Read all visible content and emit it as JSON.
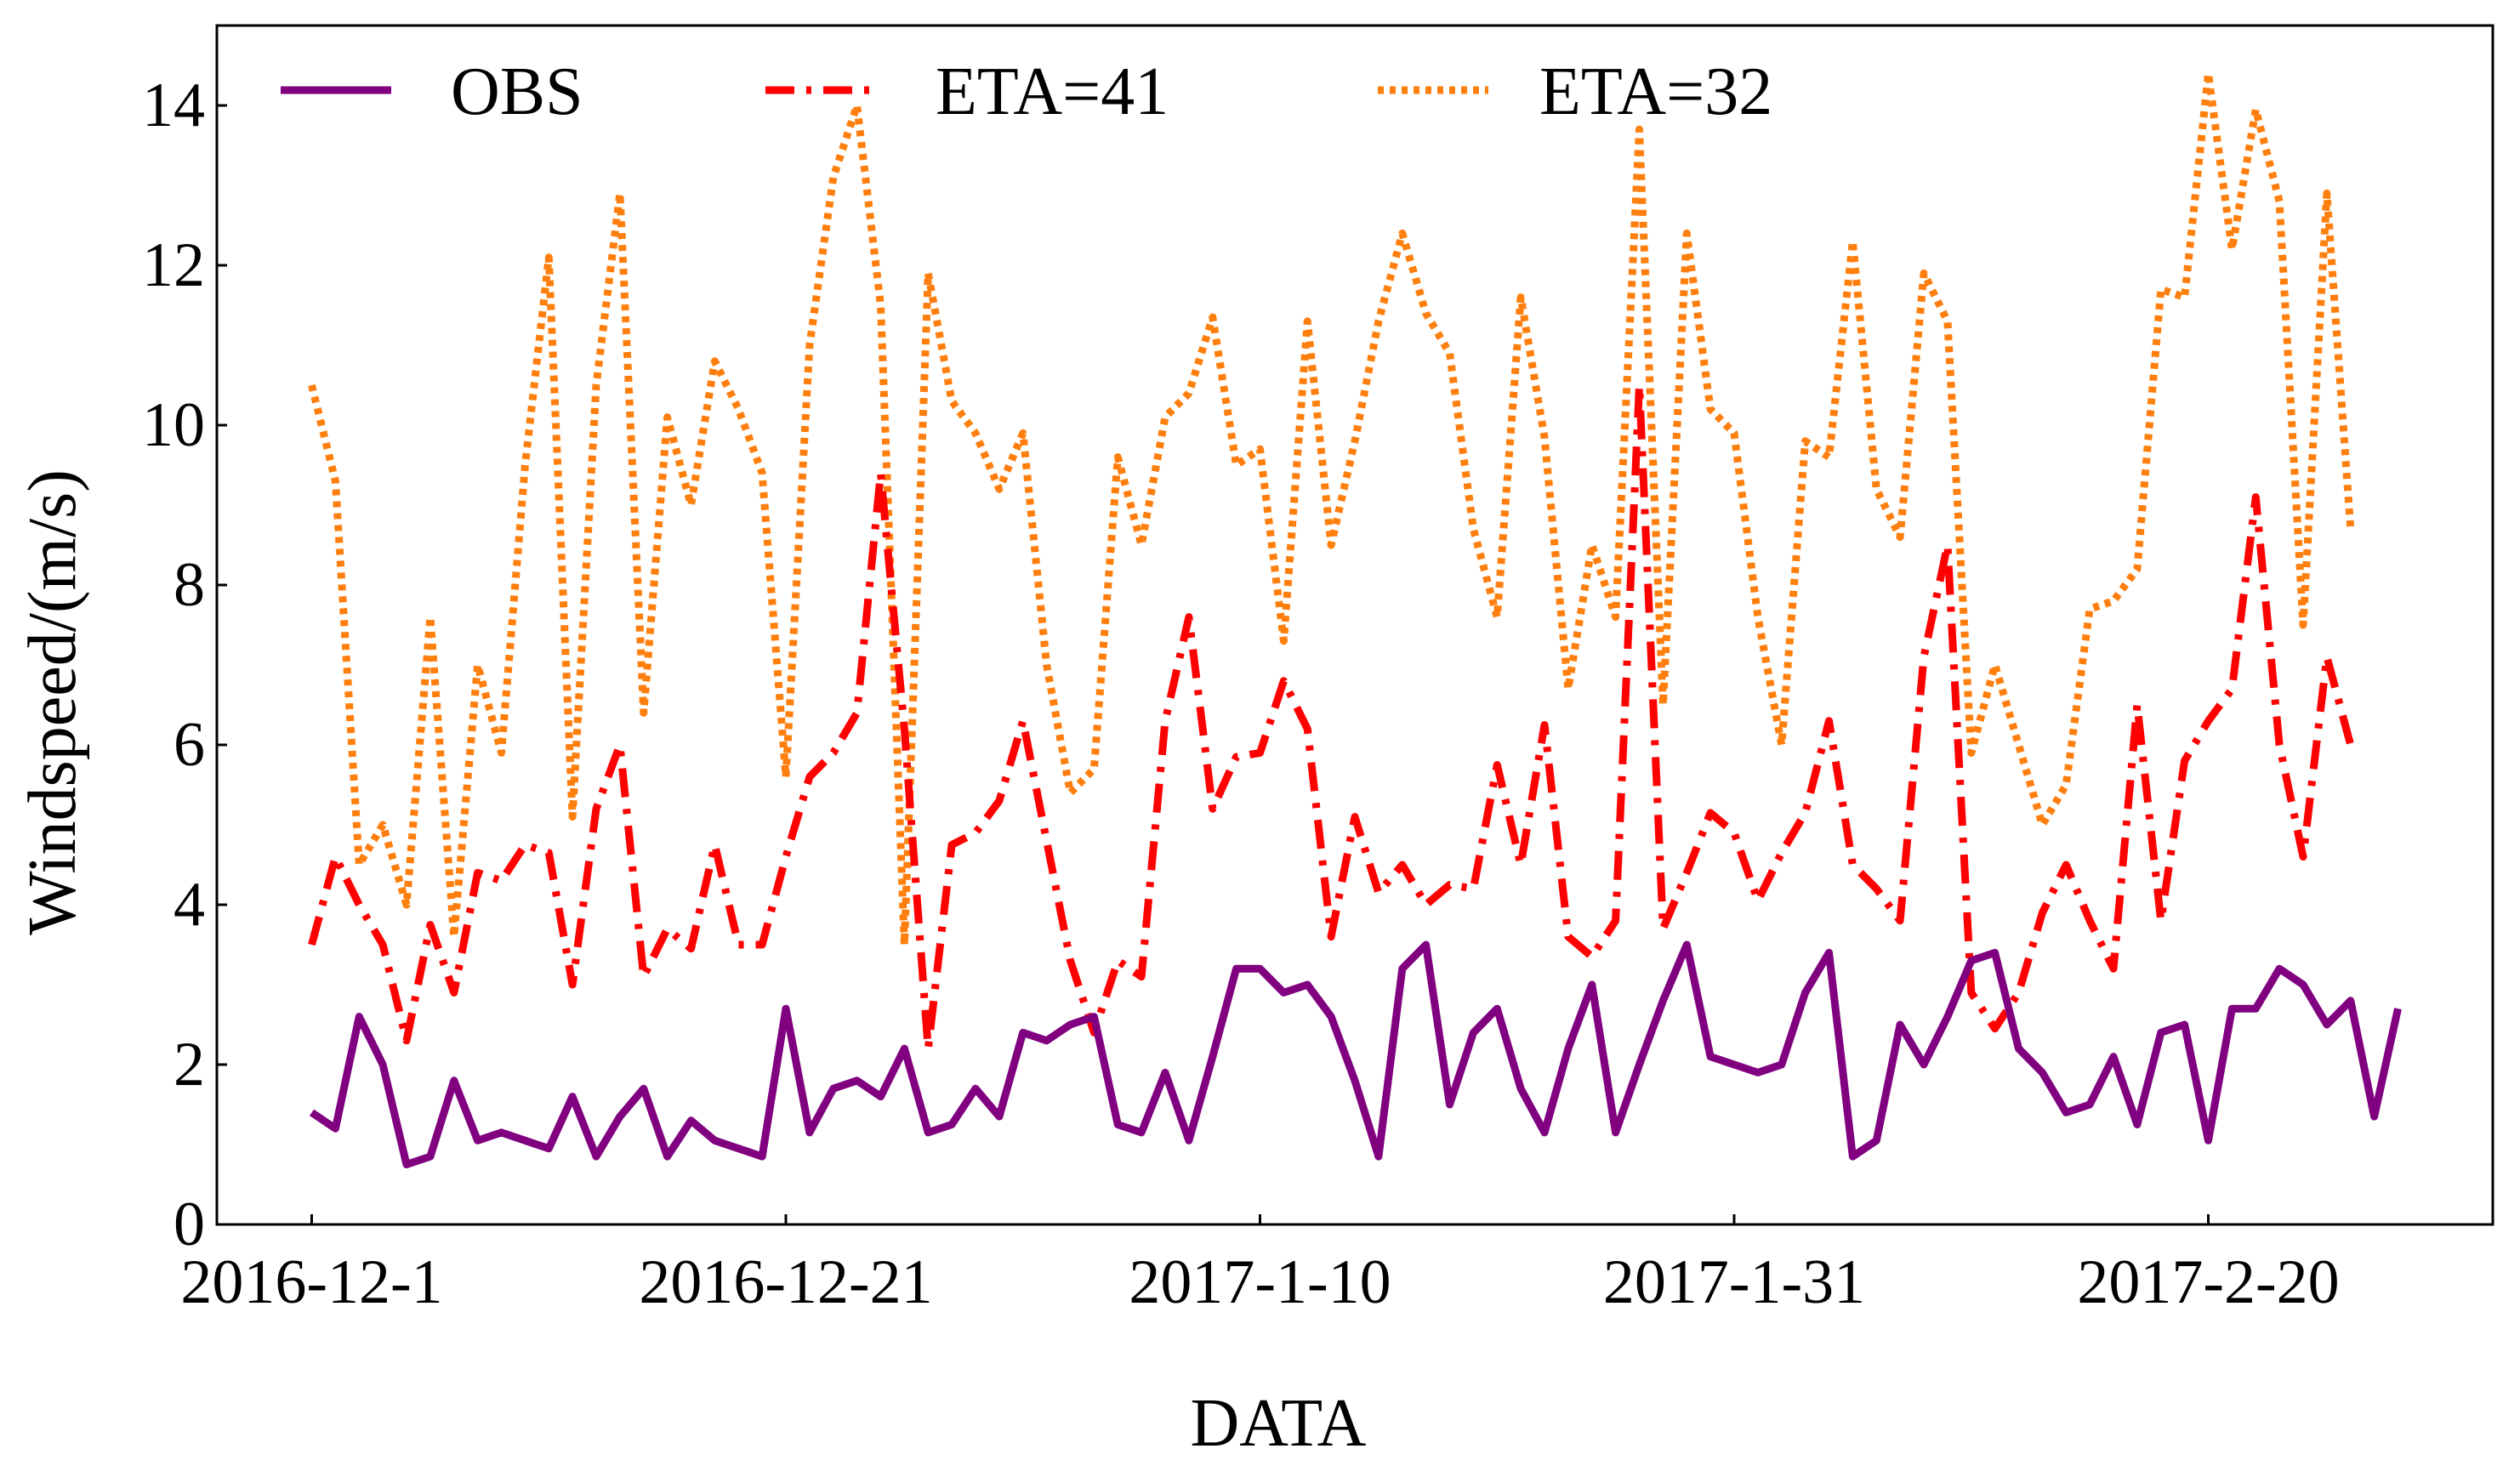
{
  "chart_data": {
    "type": "line",
    "xlabel": "DATA",
    "ylabel": "Windspeed/(m/s)",
    "xlim": [
      -4,
      92
    ],
    "ylim": [
      0,
      15
    ],
    "yticks": [
      0,
      2,
      4,
      6,
      8,
      10,
      12,
      14
    ],
    "xticks": [
      {
        "label": "2016-12-1",
        "index": 0
      },
      {
        "label": "2016-12-21",
        "index": 20
      },
      {
        "label": "2017-1-10",
        "index": 40
      },
      {
        "label": "2017-1-31",
        "index": 60
      },
      {
        "label": "2017-2-20",
        "index": 80
      }
    ],
    "legend_position": "top",
    "series": [
      {
        "name": "OBS",
        "color": "#800080",
        "style": "solid",
        "values": [
          1.4,
          1.2,
          2.6,
          2.0,
          0.75,
          0.85,
          1.8,
          1.05,
          1.15,
          1.05,
          0.95,
          1.6,
          0.85,
          1.35,
          1.7,
          0.85,
          1.3,
          1.05,
          0.95,
          0.85,
          2.7,
          1.15,
          1.7,
          1.8,
          1.6,
          2.2,
          1.15,
          1.25,
          1.7,
          1.35,
          2.4,
          2.3,
          2.5,
          2.6,
          1.25,
          1.15,
          1.9,
          1.05,
          2.1,
          3.2,
          3.2,
          2.9,
          3.0,
          2.6,
          1.8,
          0.85,
          3.2,
          3.5,
          1.5,
          2.4,
          2.7,
          1.7,
          1.15,
          2.2,
          3.0,
          1.15,
          2.0,
          2.8,
          3.5,
          2.1,
          2.0,
          1.9,
          2.0,
          2.9,
          3.4,
          0.85,
          1.05,
          2.5,
          2.0,
          2.6,
          3.3,
          3.4,
          2.2,
          1.9,
          1.4,
          1.5,
          2.1,
          1.25,
          2.4,
          2.5,
          1.05,
          2.7,
          2.7,
          3.2,
          3.0,
          2.5,
          2.8,
          1.35,
          2.7
        ]
      },
      {
        "name": "ETA=41",
        "color": "#ff0000",
        "style": "dashdot",
        "values": [
          3.5,
          4.6,
          4.0,
          3.5,
          2.3,
          3.75,
          2.9,
          4.4,
          4.3,
          4.75,
          4.65,
          3.0,
          5.2,
          6.0,
          3.1,
          3.7,
          3.45,
          4.75,
          3.5,
          3.5,
          4.6,
          5.6,
          5.9,
          6.4,
          9.4,
          6.2,
          2.2,
          4.75,
          4.9,
          5.3,
          6.3,
          4.8,
          3.3,
          2.4,
          3.3,
          3.1,
          6.3,
          7.6,
          5.2,
          5.85,
          5.9,
          6.8,
          6.2,
          3.6,
          5.1,
          4.15,
          4.5,
          4.0,
          4.25,
          4.2,
          5.75,
          4.5,
          6.25,
          3.6,
          3.35,
          3.8,
          10.5,
          3.7,
          4.4,
          5.15,
          4.9,
          4.05,
          4.65,
          5.15,
          6.3,
          4.5,
          4.2,
          3.8,
          7.1,
          8.5,
          2.9,
          2.45,
          2.9,
          3.9,
          4.5,
          3.8,
          3.2,
          6.5,
          3.8,
          5.8,
          6.3,
          6.7,
          9.1,
          6.0,
          4.6,
          7.1,
          6.0
        ]
      },
      {
        "name": "ETA=32",
        "color": "#ff7f0e",
        "style": "dotted",
        "values": [
          10.5,
          9.3,
          4.5,
          5.0,
          4.0,
          7.6,
          3.6,
          7.0,
          5.9,
          9.5,
          12.1,
          5.1,
          10.5,
          12.9,
          6.4,
          10.1,
          9.0,
          10.8,
          10.2,
          9.4,
          5.6,
          11.0,
          13.1,
          14.0,
          11.5,
          3.5,
          11.9,
          10.3,
          9.9,
          9.2,
          9.9,
          7.0,
          5.4,
          5.7,
          9.6,
          8.5,
          10.1,
          10.4,
          11.35,
          9.5,
          9.7,
          7.3,
          11.3,
          8.5,
          9.8,
          11.3,
          12.4,
          11.4,
          10.9,
          8.7,
          7.6,
          11.6,
          9.85,
          6.7,
          8.5,
          7.6,
          13.7,
          6.5,
          12.4,
          10.2,
          9.9,
          7.6,
          6.0,
          9.8,
          9.6,
          12.3,
          9.2,
          8.6,
          11.9,
          11.3,
          5.9,
          7.0,
          6.0,
          5.0,
          5.5,
          7.7,
          7.8,
          8.2,
          11.7,
          11.6,
          14.4,
          12.2,
          13.95,
          12.8,
          7.5,
          12.9,
          8.7
        ]
      }
    ]
  }
}
